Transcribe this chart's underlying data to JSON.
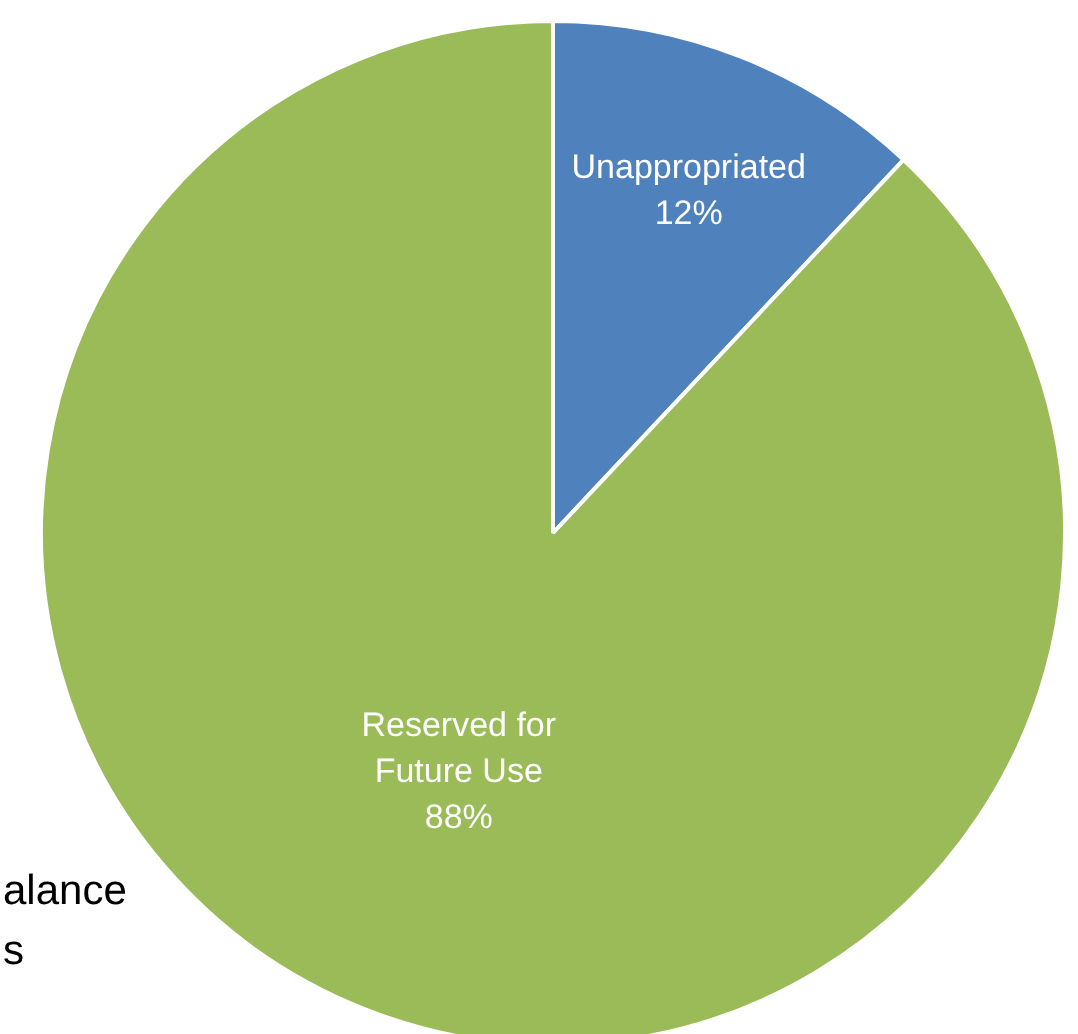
{
  "chart_data": {
    "type": "pie",
    "categories": [
      "Unappropriated",
      "Reserved for Future Use"
    ],
    "values": [
      12,
      88
    ],
    "colors": [
      "#4f81bd",
      "#9bbb59"
    ],
    "data_labels": true,
    "value_labels": [
      "12%",
      "88%"
    ],
    "annotations": [
      "alance",
      "s"
    ]
  }
}
